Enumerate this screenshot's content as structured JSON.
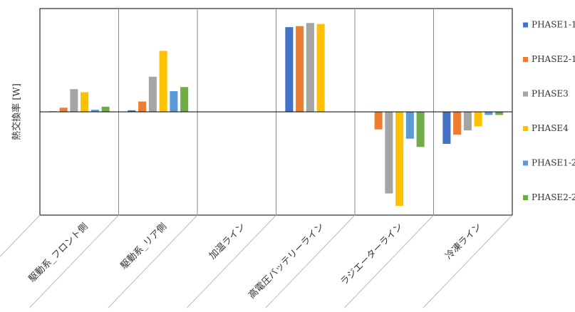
{
  "chart_data": {
    "type": "bar",
    "y_label": "熱交換率 [W]",
    "categories": [
      "駆動系_フロント側",
      "駆動系_リア側",
      "加温ライン",
      "高電圧バッテリーライン",
      "ラジエーターライン",
      "冷凍ライン"
    ],
    "series": [
      {
        "name": "PHASE1-1",
        "color": "#4472c4",
        "values": [
          0.5,
          1.5,
          null,
          82,
          null,
          -31
        ]
      },
      {
        "name": "PHASE2-1",
        "color": "#ed7d31",
        "values": [
          4,
          10,
          null,
          83,
          -17,
          -22
        ]
      },
      {
        "name": "PHASE3",
        "color": "#a5a5a5",
        "values": [
          22,
          34,
          null,
          86,
          -79,
          -18
        ]
      },
      {
        "name": "PHASE4",
        "color": "#ffc000",
        "values": [
          19,
          59,
          null,
          85,
          -91,
          -14
        ]
      },
      {
        "name": "PHASE1-2",
        "color": "#5b9bd5",
        "values": [
          2,
          20,
          null,
          null,
          -26,
          -3
        ]
      },
      {
        "name": "PHASE2-2",
        "color": "#70ad47",
        "values": [
          5,
          24,
          null,
          null,
          -34,
          -3
        ]
      }
    ],
    "ylim": [
      -100,
      100
    ],
    "legend": "right"
  }
}
